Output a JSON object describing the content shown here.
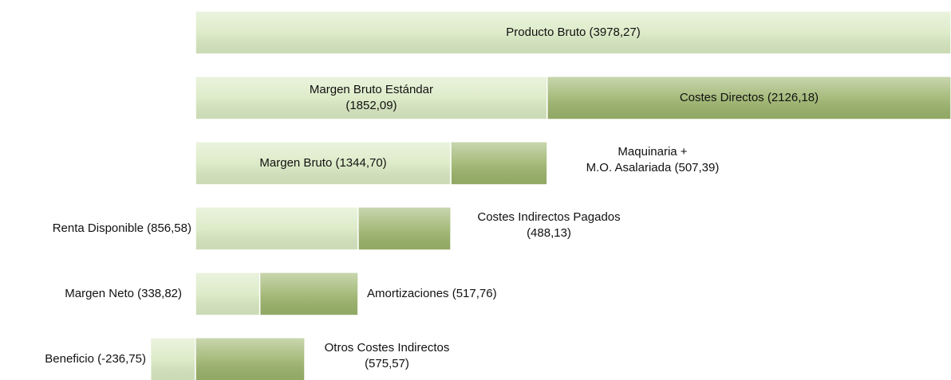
{
  "chart_data": {
    "type": "bar",
    "orientation": "horizontal",
    "stacked": true,
    "series": [
      {
        "color": "#d9e9c2",
        "values": [
          3978.27,
          1852.09,
          1344.7,
          856.58,
          338.82,
          -236.75
        ],
        "value_labels": [
          [
            "Producto Bruto (3978,27)"
          ],
          [
            "Margen Bruto Estándar",
            "(1852,09)"
          ],
          [
            "Margen Bruto (1344,70)"
          ],
          [
            "Renta Disponible (856,58)"
          ],
          [
            "Margen Neto (338,82)"
          ],
          [
            "Beneficio (-236,75)"
          ]
        ]
      },
      {
        "color": "#9bb36b",
        "values": [
          null,
          2126.18,
          507.39,
          488.13,
          517.76,
          575.57
        ],
        "value_labels": [
          null,
          [
            "Costes Directos (2126,18)"
          ],
          [
            "Maquinaria +",
            "M.O. Asalariada (507,39)"
          ],
          [
            "Costes Indirectos Pagados",
            "(488,13)"
          ],
          [
            "Amortizaciones (517,76)"
          ],
          [
            "Otros Costes Indirectos",
            "(575,57)"
          ]
        ]
      }
    ]
  }
}
